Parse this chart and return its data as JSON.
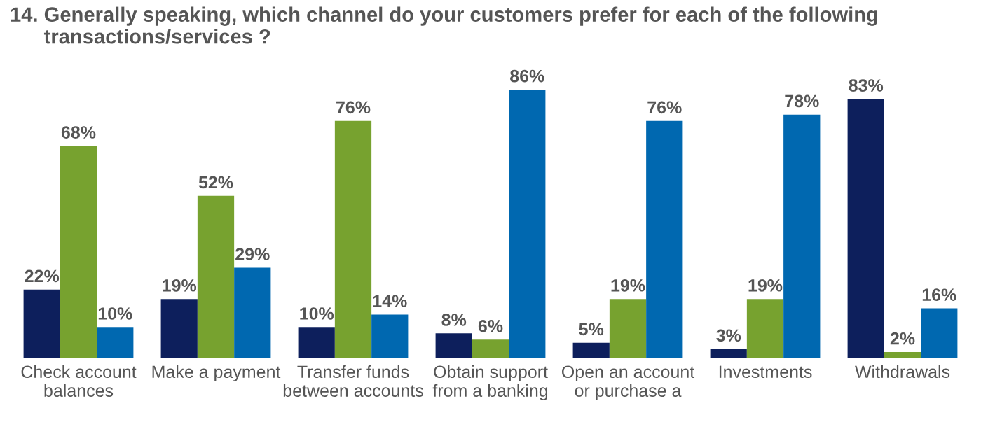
{
  "chart_data": {
    "type": "bar",
    "title": "14. Generally speaking, which channel do your customers prefer for each of the following\n      transactions/services ?",
    "categories": [
      "Check account\nbalances",
      "Make a payment",
      "Transfer funds\nbetween accounts",
      "Obtain support\nfrom a banking",
      "Open an account\nor purchase a",
      "Investments",
      "Withdrawals"
    ],
    "series": [
      {
        "color": "#0d1f5c",
        "values": [
          22,
          19,
          10,
          8,
          5,
          3,
          83
        ],
        "value_labels": [
          "22%",
          "19%",
          "10%",
          "8%",
          "5%",
          "3%",
          "83%"
        ]
      },
      {
        "color": "#77a22f",
        "values": [
          68,
          52,
          76,
          6,
          19,
          19,
          2
        ],
        "value_labels": [
          "68%",
          "52%",
          "76%",
          "6%",
          "19%",
          "19%",
          "2%"
        ]
      },
      {
        "color": "#0068b0",
        "values": [
          10,
          29,
          14,
          86,
          76,
          78,
          16
        ],
        "value_labels": [
          "10%",
          "29%",
          "14%",
          "86%",
          "76%",
          "78%",
          "16%"
        ]
      }
    ],
    "grid": false,
    "legend": false
  }
}
